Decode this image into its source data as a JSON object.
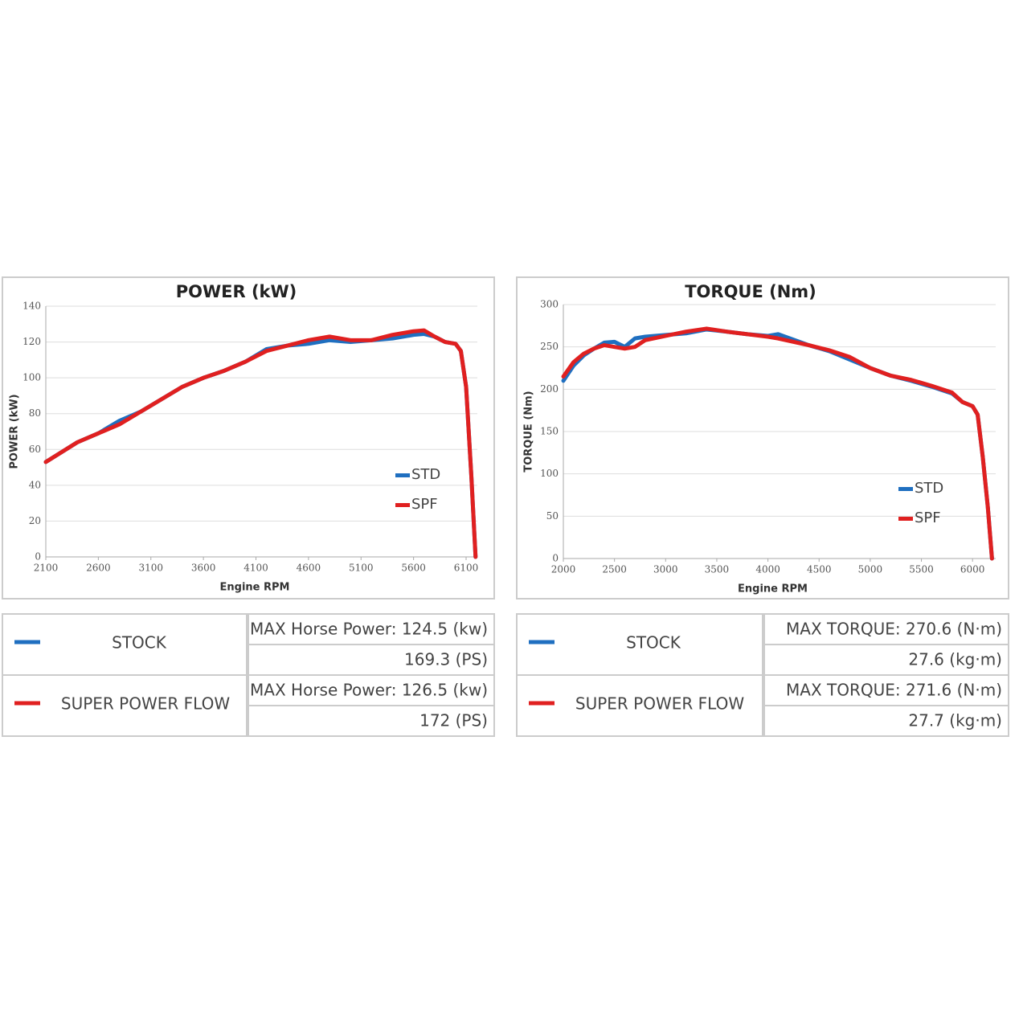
{
  "chart_data": [
    {
      "type": "line",
      "title": "POWER (kW)",
      "x_label": "Engine RPM",
      "y_label": "POWER (kW)",
      "xlim": [
        2100,
        6230
      ],
      "xticks": [
        2100,
        2600,
        3100,
        3600,
        4100,
        4600,
        5100,
        5600,
        6100
      ],
      "ylim": [
        0,
        140
      ],
      "yticks": [
        0,
        20,
        40,
        60,
        80,
        100,
        120,
        140
      ],
      "grid": true,
      "legend": "right",
      "x": [
        2100,
        2400,
        2600,
        2800,
        3000,
        3200,
        3400,
        3600,
        3800,
        4000,
        4200,
        4400,
        4600,
        4800,
        5000,
        5200,
        5400,
        5600,
        5700,
        5800,
        5900,
        6000,
        6050,
        6100,
        6150,
        6190
      ],
      "series": [
        {
          "name": "STD",
          "color": "#1f6fc0",
          "values": [
            53,
            64,
            69,
            76,
            81,
            88,
            95,
            100,
            104,
            109,
            116,
            118,
            119,
            121,
            120,
            121,
            122,
            124,
            124.5,
            123,
            120,
            119,
            115,
            95,
            45,
            0
          ]
        },
        {
          "name": "SPF",
          "color": "#e02020",
          "values": [
            53,
            64,
            69,
            74,
            81,
            88,
            95,
            100,
            104,
            109,
            115,
            118,
            121,
            123,
            121,
            121,
            124,
            126,
            126.5,
            123,
            120,
            119,
            115,
            95,
            45,
            0
          ]
        }
      ]
    },
    {
      "type": "line",
      "title": "TORQUE (Nm)",
      "x_label": "Engine RPM",
      "y_label": "TORQUE (Nm)",
      "xlim": [
        2000,
        6250
      ],
      "xticks": [
        2000,
        2500,
        3000,
        3500,
        4000,
        4500,
        5000,
        5500,
        6000
      ],
      "ylim": [
        0,
        300
      ],
      "yticks": [
        0,
        50,
        100,
        150,
        200,
        250,
        300
      ],
      "grid": true,
      "legend": "right",
      "x": [
        2000,
        2100,
        2200,
        2300,
        2400,
        2500,
        2600,
        2700,
        2800,
        3000,
        3200,
        3400,
        3600,
        3800,
        4000,
        4100,
        4400,
        4600,
        4800,
        5000,
        5200,
        5400,
        5600,
        5800,
        5900,
        6000,
        6050,
        6100,
        6150,
        6190
      ],
      "series": [
        {
          "name": "STD",
          "color": "#1f6fc0",
          "values": [
            210,
            228,
            240,
            248,
            255,
            256,
            250,
            260,
            262,
            264,
            266,
            270.6,
            268,
            265,
            263,
            265,
            252,
            245,
            235,
            225,
            216,
            210,
            203,
            195,
            185,
            180,
            170,
            120,
            60,
            0
          ]
        },
        {
          "name": "SPF",
          "color": "#e02020",
          "values": [
            215,
            232,
            242,
            248,
            252,
            250,
            248,
            250,
            258,
            263,
            268,
            271.6,
            268,
            265,
            262,
            260,
            252,
            246,
            238,
            225,
            216,
            211,
            204,
            196,
            185,
            180,
            170,
            120,
            60,
            0
          ]
        }
      ]
    }
  ],
  "tables": [
    {
      "rows": [
        {
          "name": "STOCK",
          "color": "#1f6fc0",
          "lines": [
            "MAX Horse Power: 124.5 (kw)",
            "169.3 (PS)"
          ]
        },
        {
          "name": "SUPER POWER FLOW",
          "color": "#e02020",
          "lines": [
            "MAX Horse Power: 126.5 (kw)",
            "172 (PS)"
          ]
        }
      ]
    },
    {
      "rows": [
        {
          "name": "STOCK",
          "color": "#1f6fc0",
          "lines": [
            "MAX TORQUE: 270.6 (N·m)",
            "27.6 (kg·m)"
          ]
        },
        {
          "name": "SUPER POWER FLOW",
          "color": "#e02020",
          "lines": [
            "MAX TORQUE: 271.6 (N·m)",
            "27.7 (kg·m)"
          ]
        }
      ]
    }
  ]
}
